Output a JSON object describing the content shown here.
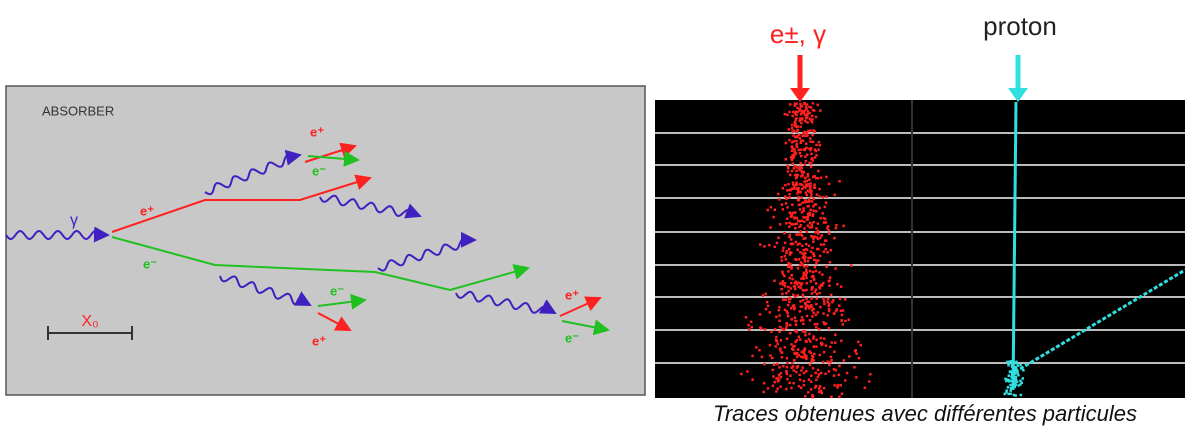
{
  "left_panel": {
    "label": "ABSORBER",
    "incoming": "γ",
    "scale": "X₀",
    "particles": [
      "e⁺",
      "e⁻",
      "e⁺",
      "e⁻",
      "e⁻",
      "e⁺",
      "e⁺",
      "e⁻"
    ]
  },
  "right_panel": {
    "labels": [
      "e±, γ",
      "proton"
    ],
    "caption": "Traces obtenues avec différentes particules"
  }
}
